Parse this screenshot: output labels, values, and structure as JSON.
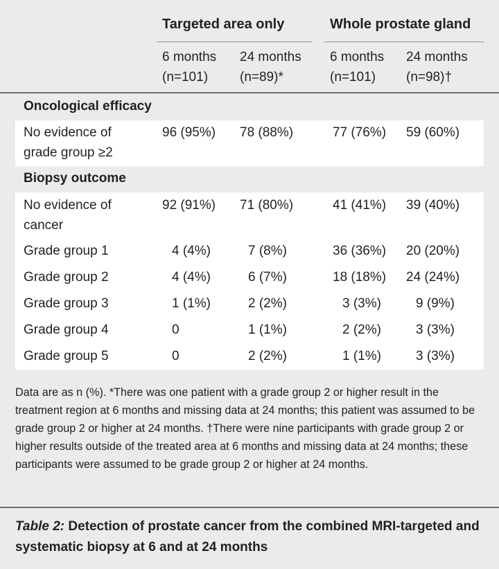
{
  "header": {
    "groups": [
      {
        "label": "Targeted area only"
      },
      {
        "label": "Whole prostate gland"
      }
    ],
    "columns": [
      {
        "line1": "6 months",
        "line2": "(n=101)"
      },
      {
        "line1": "24 months",
        "line2": "(n=89)*"
      },
      {
        "line1": "6 months",
        "line2": "(n=101)"
      },
      {
        "line1": "24 months",
        "line2": "(n=98)†"
      }
    ]
  },
  "sections": [
    {
      "title": "Oncological efficacy",
      "rows": [
        {
          "label": [
            "No evidence of",
            "grade group ≥2"
          ],
          "values": [
            "96 (95%)",
            "78 (88%)",
            "77 (76%)",
            "59 (60%)"
          ]
        }
      ]
    },
    {
      "title": "Biopsy outcome",
      "rows": [
        {
          "label": [
            "No evidence of",
            "cancer"
          ],
          "values": [
            "92 (91%)",
            "71 (80%)",
            "41 (41%)",
            "39 (40%)"
          ]
        },
        {
          "label": [
            "Grade group 1"
          ],
          "values": [
            "4 (4%)",
            "7 (8%)",
            "36 (36%)",
            "20 (20%)"
          ]
        },
        {
          "label": [
            "Grade group 2"
          ],
          "values": [
            "4 (4%)",
            "6 (7%)",
            "18 (18%)",
            "24 (24%)"
          ]
        },
        {
          "label": [
            "Grade group 3"
          ],
          "values": [
            "1 (1%)",
            "2 (2%)",
            "3 (3%)",
            "9 (9%)"
          ]
        },
        {
          "label": [
            "Grade group 4"
          ],
          "values": [
            "0",
            "1 (1%)",
            "2 (2%)",
            "3 (3%)"
          ]
        },
        {
          "label": [
            "Grade group 5"
          ],
          "values": [
            "0",
            "2 (2%)",
            "1 (1%)",
            "3 (3%)"
          ]
        }
      ]
    }
  ],
  "footnote": "Data are as n (%). *There was one patient with a grade group 2 or higher result in the treatment region at 6 months and missing data at 24 months; this patient was assumed to be grade group 2 or higher at 24 months. †There were nine participants with grade group 2 or higher results outside of the treated area at 6 months and missing data at 24 months; these participants were assumed to be grade group 2 or higher at 24 months.",
  "caption": {
    "label": "Table 2:",
    "text": " Detection of prostate cancer from the combined MRI-targeted and systematic biopsy at 6 and at 24 months"
  }
}
